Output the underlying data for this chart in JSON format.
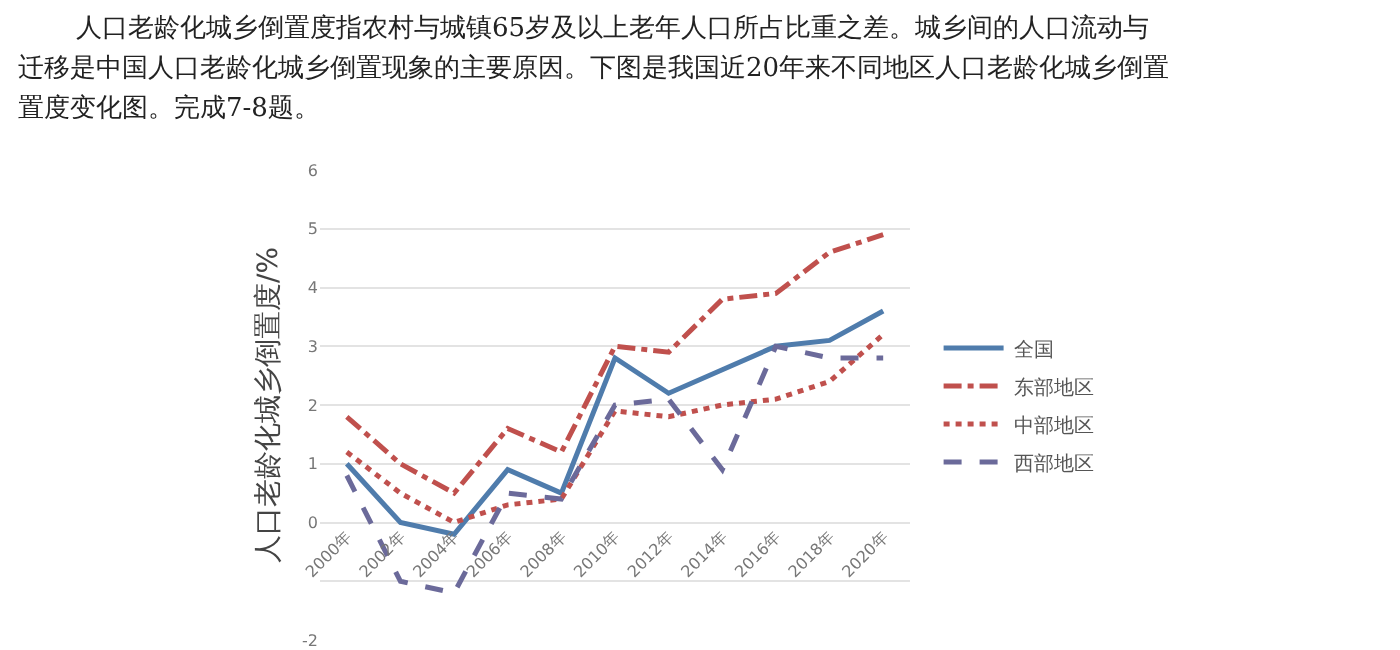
{
  "chart_data": {
    "type": "line",
    "annotations": [
      "人口老龄化城乡倒置度指农村与城镇65岁及以上老年人口所占比重之差。城乡间的人口流动与",
      "迁移是中国人口老龄化城乡倒置现象的主要原因。下图是我国近20年来不同地区人口老龄化城乡倒置",
      "置度变化图。完成7-8题。"
    ],
    "ylabel": "人口老龄化城乡倒置度/%",
    "categories": [
      "2000年",
      "2002年",
      "2004年",
      "2006年",
      "2008年",
      "2010年",
      "2012年",
      "2014年",
      "2016年",
      "2018年",
      "2020年"
    ],
    "series": [
      {
        "name": "全国",
        "color": "#4f7cac",
        "line_style": "solid",
        "values": [
          1.0,
          0.0,
          -0.2,
          0.9,
          0.5,
          2.8,
          2.2,
          2.6,
          3.0,
          3.1,
          3.6
        ]
      },
      {
        "name": "东部地区",
        "color": "#c0504d",
        "line_style": "dashdot",
        "values": [
          1.8,
          1.0,
          0.5,
          1.6,
          1.2,
          3.0,
          2.9,
          3.8,
          3.9,
          4.6,
          4.9
        ]
      },
      {
        "name": "中部地区",
        "color": "#c0504d",
        "line_style": "dotted",
        "values": [
          1.2,
          0.5,
          0.0,
          0.3,
          0.4,
          1.9,
          1.8,
          2.0,
          2.1,
          2.4,
          3.2
        ]
      },
      {
        "name": "西部地区",
        "color": "#6b6a9a",
        "line_style": "dashed",
        "values": [
          0.8,
          -1.0,
          -1.2,
          0.5,
          0.4,
          2.0,
          2.1,
          0.9,
          3.0,
          2.8,
          2.8
        ]
      }
    ],
    "ylim": [
      -2,
      6
    ],
    "yticks": [
      -2,
      {
        "value": -1,
        "label": null
      },
      0,
      1,
      2,
      3,
      4,
      5,
      6
    ],
    "grid": "y",
    "legend": "right",
    "marker": "none"
  }
}
